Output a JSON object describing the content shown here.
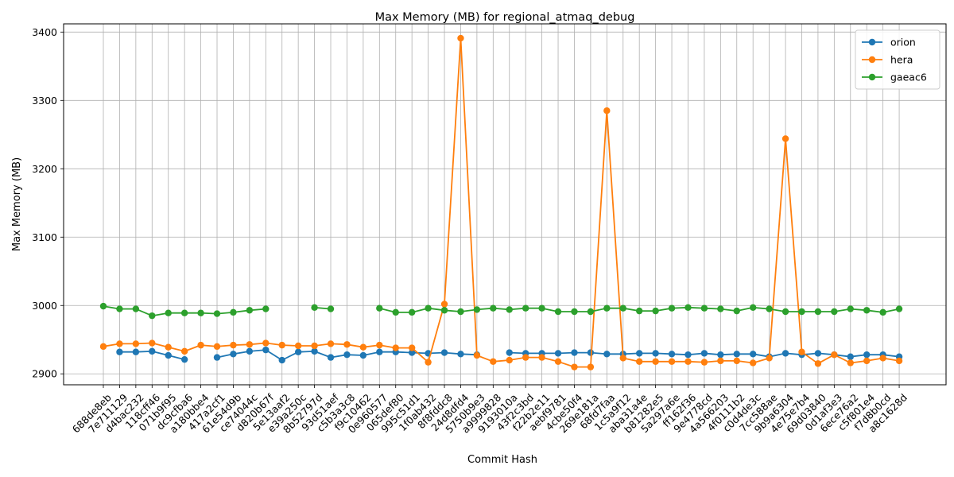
{
  "chart_data": {
    "type": "line",
    "title": "Max Memory (MB) for regional_atmaq_debug",
    "xlabel": "Commit Hash",
    "ylabel": "Max Memory (MB)",
    "ylim": [
      2884,
      3412
    ],
    "yticks": [
      2900,
      3000,
      3100,
      3200,
      3300,
      3400
    ],
    "grid": true,
    "legend_position": "top-right",
    "categories": [
      "688de8eb",
      "7e711129",
      "d4bac232",
      "118cff46",
      "071b9f95",
      "dc9cfba6",
      "a180bbe4",
      "417a2cf1",
      "61e54d9b",
      "ce74044c",
      "d820b67f",
      "5e13aaf2",
      "e39a250c",
      "8b52797d",
      "93d51aef",
      "c5b3a3c8",
      "f9c10462",
      "0e960577",
      "065def80",
      "995c51d1",
      "1f0ab432",
      "8f8fddc8",
      "24d8dfd4",
      "5750b9e3",
      "a9999828",
      "9193010a",
      "43f2c3bd",
      "f22b2e11",
      "aebf9781",
      "4cbe50f4",
      "269e181a",
      "68fd7faa",
      "1c5a9f12",
      "aba31a4e",
      "b81282e5",
      "5a297a6e",
      "ff162f36",
      "9e4778cd",
      "4a566203",
      "4f0111b2",
      "c0d4de3c",
      "7cc588ae",
      "9b9a6304",
      "4e75e7b4",
      "69d03840",
      "0d1af3e3",
      "6ece76a2",
      "c5f801e4",
      "f7d8b0cd",
      "a8c1628d"
    ],
    "series": [
      {
        "name": "orion",
        "color": "#1f77b4",
        "values": [
          null,
          2932,
          2932,
          2933,
          2927,
          2921,
          null,
          2924,
          2929,
          2933,
          2935,
          2920,
          2932,
          2933,
          2924,
          2928,
          2927,
          2932,
          2932,
          2931,
          2930,
          2931,
          2929,
          2928,
          null,
          2931,
          2930,
          2930,
          2930,
          2931,
          2931,
          2929,
          2929,
          2930,
          2930,
          2929,
          2928,
          2930,
          2928,
          2929,
          2929,
          2925,
          2930,
          2928,
          2930,
          2928,
          2925,
          2928,
          2928,
          2925
        ]
      },
      {
        "name": "hera",
        "color": "#ff7f0e",
        "values": [
          2940,
          2944,
          2944,
          2945,
          2939,
          2933,
          2942,
          2940,
          2942,
          2943,
          2945,
          2942,
          2941,
          2941,
          2944,
          2943,
          2939,
          2942,
          2938,
          2938,
          2917,
          3002,
          3391,
          2927,
          2918,
          2920,
          2924,
          2924,
          2918,
          2910,
          2910,
          3285,
          2923,
          2918,
          2918,
          2918,
          2918,
          2917,
          2919,
          2919,
          2916,
          2923,
          3244,
          2932,
          2915,
          2928,
          2916,
          2919,
          2923,
          2919
        ]
      },
      {
        "name": "gaeac6",
        "color": "#2ca02c",
        "values": [
          2999,
          2995,
          2995,
          2985,
          2989,
          2989,
          2989,
          2988,
          2990,
          2993,
          2995,
          null,
          null,
          2997,
          2995,
          null,
          null,
          2996,
          2990,
          2990,
          2996,
          2993,
          2991,
          2994,
          2996,
          2994,
          2996,
          2996,
          2991,
          2991,
          2991,
          2996,
          2996,
          2992,
          2992,
          2996,
          2997,
          2996,
          2995,
          2992,
          2997,
          2995,
          2991,
          2991,
          2991,
          2991,
          2995,
          2993,
          2990,
          2995
        ]
      }
    ]
  }
}
